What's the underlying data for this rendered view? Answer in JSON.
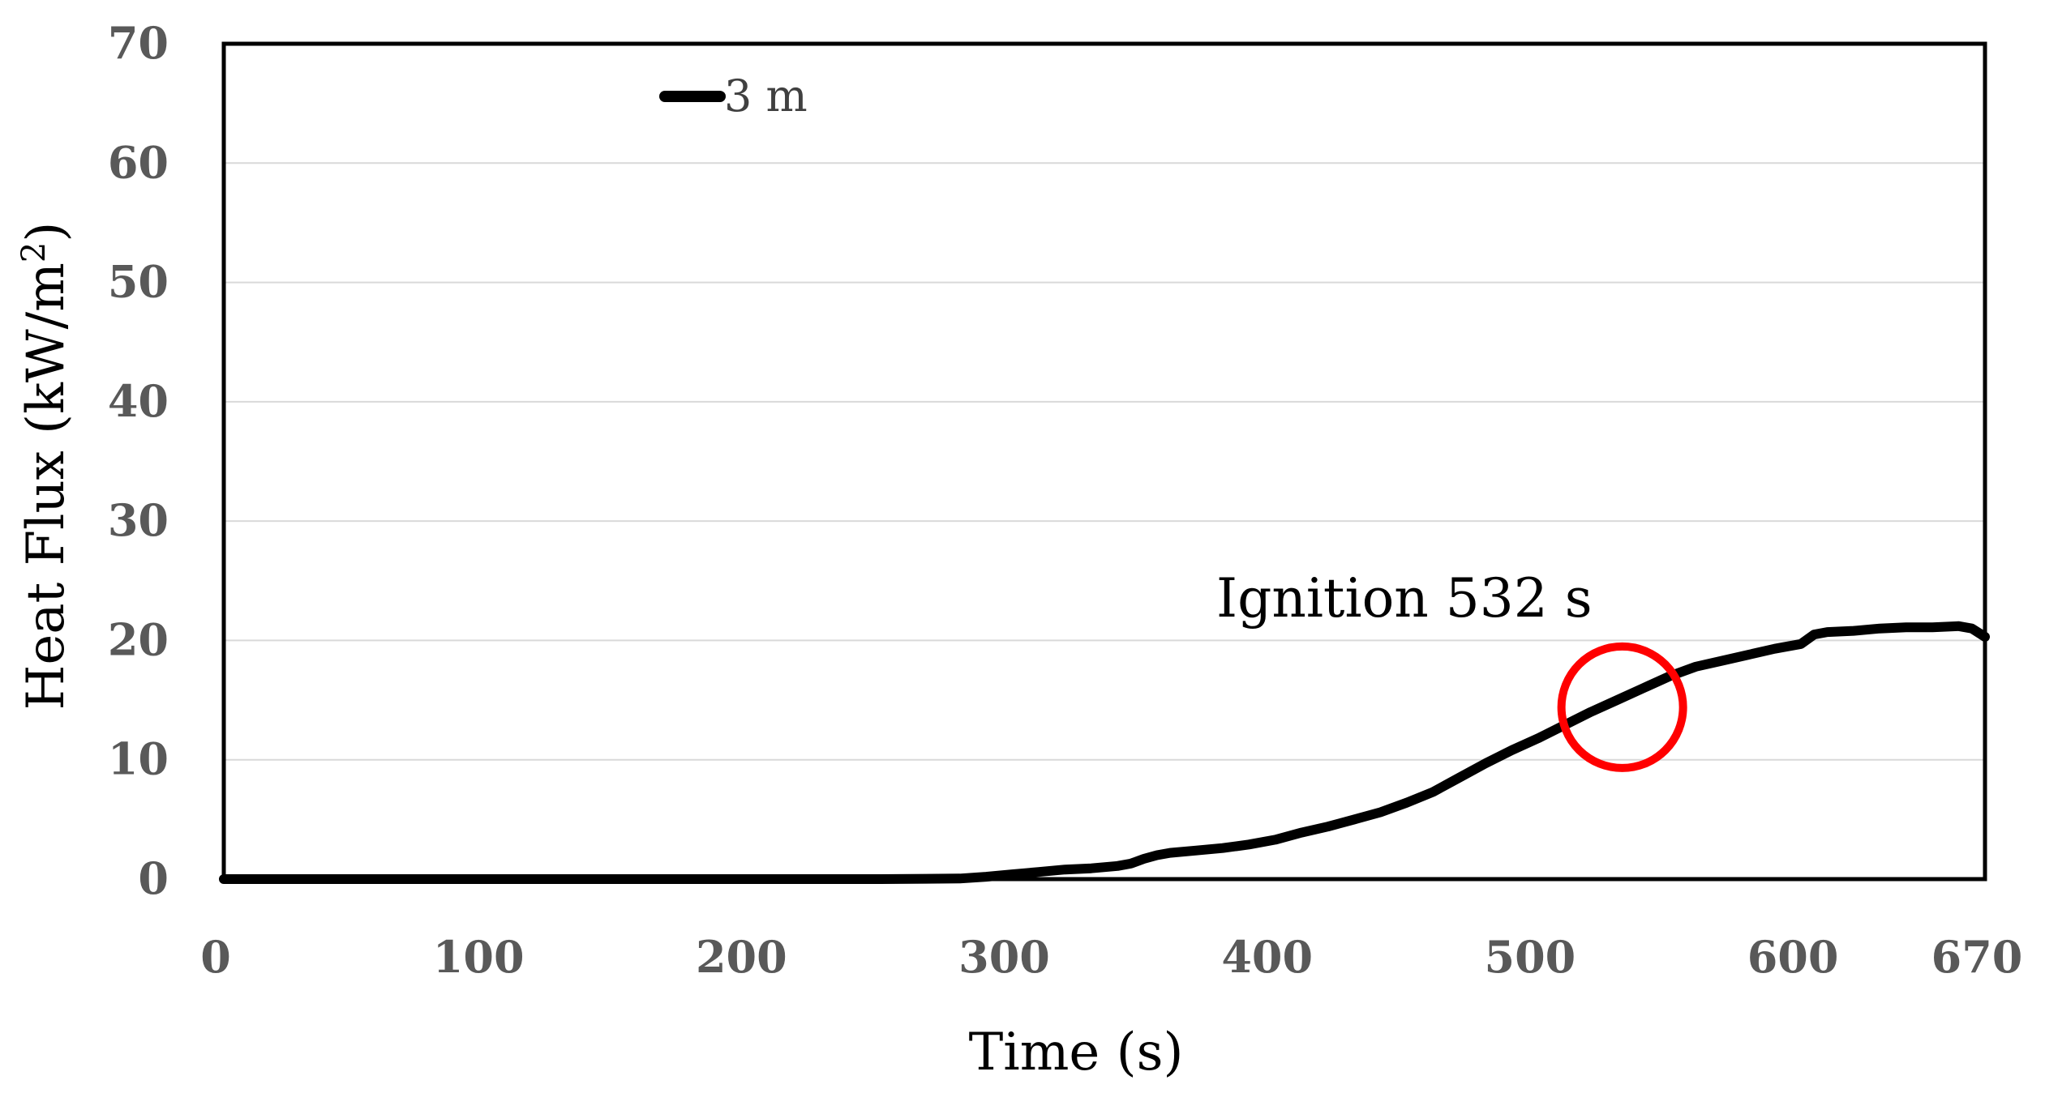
{
  "chart_data": {
    "type": "line",
    "title": "",
    "xlabel": "Time (s)",
    "ylabel": "Heat Flux (kW/m²)",
    "ylabel_main": "Heat Flux (kW/m",
    "ylabel_sup": "2",
    "ylabel_close": ")",
    "xlim": [
      0,
      670
    ],
    "ylim": [
      0,
      70
    ],
    "x_ticks": [
      0,
      100,
      200,
      300,
      400,
      500,
      600,
      670
    ],
    "x_tick_labels": [
      "0",
      "100",
      "200",
      "300",
      "400",
      "500",
      "600",
      "670"
    ],
    "y_ticks": [
      0,
      10,
      20,
      30,
      40,
      50,
      60,
      70
    ],
    "y_tick_labels": [
      "0",
      "10",
      "20",
      "30",
      "40",
      "50",
      "60",
      "70"
    ],
    "grid": "horizontal",
    "legend": "top-left",
    "series": [
      {
        "name": "3 m",
        "color": "#000000",
        "x": [
          0,
          50,
          100,
          150,
          200,
          250,
          280,
          290,
          300,
          310,
          320,
          330,
          340,
          345,
          350,
          355,
          360,
          370,
          380,
          390,
          400,
          410,
          420,
          430,
          440,
          450,
          460,
          470,
          480,
          490,
          500,
          510,
          520,
          530,
          540,
          550,
          560,
          570,
          580,
          590,
          600,
          605,
          610,
          620,
          630,
          640,
          650,
          660,
          665,
          670
        ],
        "y": [
          0,
          0,
          0,
          0,
          0,
          0,
          0.05,
          0.2,
          0.4,
          0.6,
          0.8,
          0.9,
          1.1,
          1.3,
          1.7,
          2.0,
          2.2,
          2.4,
          2.6,
          2.9,
          3.3,
          3.9,
          4.4,
          5.0,
          5.6,
          6.4,
          7.3,
          8.5,
          9.7,
          10.8,
          11.8,
          12.9,
          14.0,
          15.0,
          16.0,
          17.0,
          17.8,
          18.3,
          18.8,
          19.3,
          19.7,
          20.5,
          20.7,
          20.8,
          21.0,
          21.1,
          21.1,
          21.2,
          21.0,
          20.3
        ]
      }
    ],
    "annotations": [
      {
        "text": "Ignition 532 s",
        "x": 532,
        "y": 14.4,
        "marker": "circle",
        "marker_color": "#ff0000"
      }
    ]
  }
}
